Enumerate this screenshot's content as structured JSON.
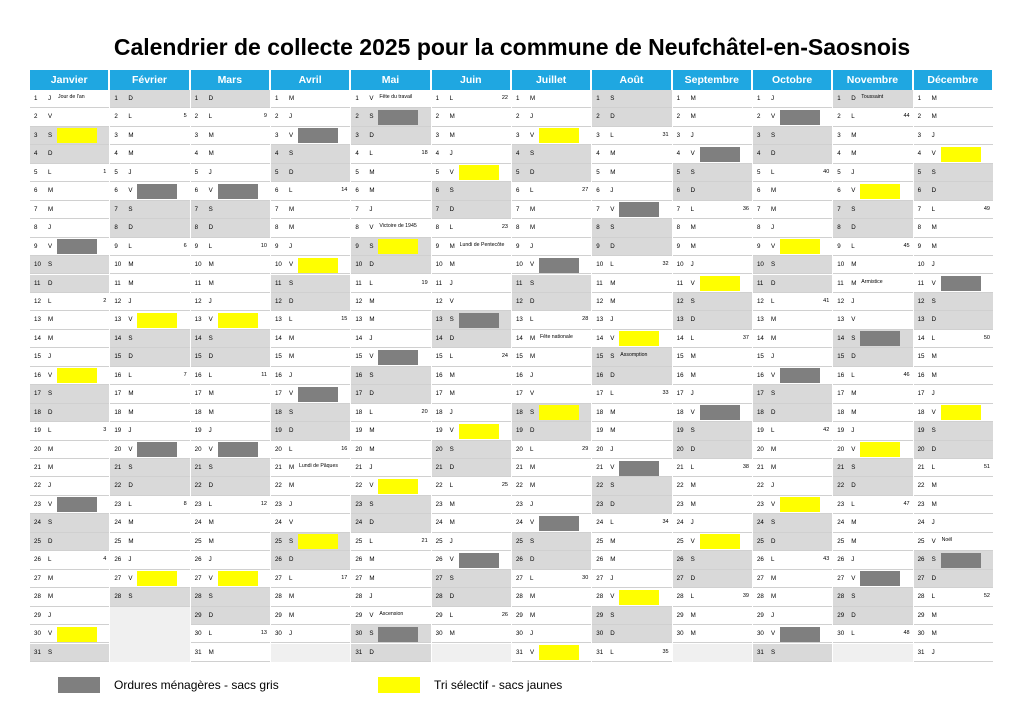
{
  "title": "Calendrier de collecte 2025 pour la commune de Neufchâtel-en-Saosnois",
  "colors": {
    "header": "#1fa7e1",
    "weekend": "#d9d9d9",
    "gris": "#7f7f7f",
    "jaune": "#ffff00"
  },
  "months": [
    {
      "name": "Janvier",
      "start": 3,
      "days": 31,
      "gris": [
        9,
        23
      ],
      "jaune": [
        3,
        16,
        30
      ]
    },
    {
      "name": "Février",
      "start": 6,
      "days": 28,
      "gris": [
        6,
        20
      ],
      "jaune": [
        13,
        27
      ]
    },
    {
      "name": "Mars",
      "start": 6,
      "days": 31,
      "gris": [
        6,
        20
      ],
      "jaune": [
        13,
        27
      ]
    },
    {
      "name": "Avril",
      "start": 2,
      "days": 30,
      "gris": [
        3,
        17
      ],
      "jaune": [
        10,
        25
      ]
    },
    {
      "name": "Mai",
      "start": 4,
      "days": 31,
      "gris": [
        2,
        15,
        30
      ],
      "jaune": [
        9,
        22
      ]
    },
    {
      "name": "Juin",
      "start": 0,
      "days": 30,
      "gris": [
        13,
        26
      ],
      "jaune": [
        5,
        19
      ]
    },
    {
      "name": "Juillet",
      "start": 2,
      "days": 31,
      "gris": [
        10,
        24
      ],
      "jaune": [
        3,
        18,
        31
      ]
    },
    {
      "name": "Août",
      "start": 5,
      "days": 31,
      "gris": [
        7,
        21
      ],
      "jaune": [
        14,
        28
      ]
    },
    {
      "name": "Septembre",
      "start": 1,
      "days": 30,
      "gris": [
        4,
        18
      ],
      "jaune": [
        11,
        25
      ]
    },
    {
      "name": "Octobre",
      "start": 3,
      "days": 31,
      "gris": [
        2,
        16,
        30
      ],
      "jaune": [
        9,
        23
      ]
    },
    {
      "name": "Novembre",
      "start": 6,
      "days": 30,
      "gris": [
        14,
        27
      ],
      "jaune": [
        6,
        20
      ]
    },
    {
      "name": "Décembre",
      "start": 1,
      "days": 31,
      "gris": [
        11,
        26
      ],
      "jaune": [
        4,
        18
      ]
    }
  ],
  "day_letters": [
    "L",
    "M",
    "M",
    "J",
    "V",
    "S",
    "D"
  ],
  "events": [
    {
      "m": 0,
      "d": 1,
      "t": "Jour de l'an"
    },
    {
      "m": 3,
      "d": 21,
      "t": "Lundi de Pâques"
    },
    {
      "m": 4,
      "d": 1,
      "t": "Fête du travail"
    },
    {
      "m": 4,
      "d": 8,
      "t": "Victoire de 1945"
    },
    {
      "m": 4,
      "d": 29,
      "t": "Ascension"
    },
    {
      "m": 5,
      "d": 9,
      "t": "Lundi de Pentecôte"
    },
    {
      "m": 6,
      "d": 14,
      "t": "Fête nationale"
    },
    {
      "m": 7,
      "d": 15,
      "t": "Assomption"
    },
    {
      "m": 10,
      "d": 1,
      "t": "Toussaint"
    },
    {
      "m": 10,
      "d": 11,
      "t": "Armistice"
    },
    {
      "m": 11,
      "d": 25,
      "t": "Noël"
    }
  ],
  "legend": {
    "gris": "Ordures ménagères - sacs gris",
    "jaune": "Tri sélectif - sacs jaunes"
  }
}
